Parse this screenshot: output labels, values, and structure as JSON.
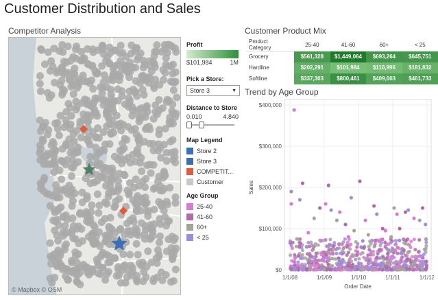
{
  "title": "Customer Distribution and Sales",
  "competitor": {
    "title": "Competitor Analysis",
    "attribution": "© Mapbox © OSM"
  },
  "profit": {
    "title": "Profit",
    "min_label": "$101,984",
    "max_label": "1M",
    "color_low": "#d4ebd0",
    "color_high": "#2f8f3a"
  },
  "store_picker": {
    "title": "Pick a Store:",
    "selected": "Store 3"
  },
  "distance": {
    "title": "Distance to Store",
    "min": "0.010",
    "max": "4.840",
    "value": 0.28
  },
  "map_legend": {
    "title": "Map Legend",
    "items": [
      {
        "label": "Store 2",
        "color": "#3b6fb6"
      },
      {
        "label": "Store 3",
        "color": "#3f6fa6"
      },
      {
        "label": "COMPETIT...",
        "color": "#e05a3c"
      },
      {
        "label": "Customer",
        "color": "#c8c8c8"
      }
    ]
  },
  "age_group": {
    "title": "Age Group",
    "items": [
      {
        "label": "25-40",
        "color": "#d77bd2"
      },
      {
        "label": "41-60",
        "color": "#b06aa6"
      },
      {
        "label": "60+",
        "color": "#a6a49a"
      },
      {
        "label": "< 25",
        "color": "#9b8ee0"
      }
    ]
  },
  "product_mix": {
    "title": "Customer Product Mix",
    "header": "Product Category",
    "columns": [
      "25-40",
      "41-60",
      "60+",
      "< 25"
    ],
    "rows": [
      {
        "category": "Grocery",
        "values": [
          "$561,328",
          "$1,449,064",
          "$693,264",
          "$645,751"
        ]
      },
      {
        "category": "Hardline",
        "values": [
          "$202,291",
          "$101,984",
          "$110,996",
          "$181,832"
        ]
      },
      {
        "category": "Softline",
        "values": [
          "$337,303",
          "$800,461",
          "$409,003",
          "$461,733"
        ]
      }
    ]
  },
  "chart_data": {
    "type": "scatter",
    "title": "Trend by Age Group",
    "xlabel": "Order Date",
    "ylabel": "Sales",
    "x_ticks": [
      "1/1/08",
      "1/1/09",
      "1/1/10",
      "1/1/11",
      "1/1/12"
    ],
    "y_ticks": [
      "$0",
      "$100,000",
      "$200,000",
      "$300,000",
      "$400,000"
    ],
    "ylim": [
      0,
      400000
    ],
    "series": [
      {
        "name": "25-40",
        "color": "#d77bd2",
        "points": [
          [
            "2008-02",
            388000
          ],
          [
            "2008-01",
            160000
          ],
          [
            "2009-01",
            160000
          ],
          [
            "2009-06",
            140000
          ],
          [
            "2010-03",
            120000
          ],
          [
            "2011-02",
            135000
          ],
          [
            "2011-08",
            125000
          ],
          [
            "2008-07",
            90000
          ],
          [
            "2010-10",
            95000
          ],
          [
            "2009-09",
            80000
          ]
        ]
      },
      {
        "name": "41-60",
        "color": "#b06aa6",
        "points": [
          [
            "2008-05",
            210000
          ],
          [
            "2009-02",
            205000
          ],
          [
            "2010-01",
            215000
          ],
          [
            "2008-11",
            150000
          ],
          [
            "2010-06",
            155000
          ],
          [
            "2011-05",
            140000
          ],
          [
            "2011-11",
            150000
          ],
          [
            "2009-08",
            110000
          ],
          [
            "2010-09",
            100000
          ],
          [
            "2011-03",
            100000
          ]
        ]
      },
      {
        "name": "60+",
        "color": "#a6a49a",
        "points": [
          [
            "2008-09",
            125000
          ],
          [
            "2009-05",
            120000
          ],
          [
            "2010-04",
            85000
          ],
          [
            "2011-01",
            150000
          ],
          [
            "2011-10",
            120000
          ],
          [
            "2008-03",
            75000
          ],
          [
            "2009-11",
            95000
          ],
          [
            "2010-12",
            80000
          ]
        ]
      },
      {
        "name": "< 25",
        "color": "#9b8ee0",
        "points": [
          [
            "2008-01",
            190000
          ],
          [
            "2008-04",
            170000
          ],
          [
            "2009-03",
            145000
          ],
          [
            "2009-10",
            175000
          ],
          [
            "2010-07",
            135000
          ],
          [
            "2011-06",
            145000
          ],
          [
            "2011-12",
            110000
          ],
          [
            "2010-02",
            70000
          ]
        ]
      }
    ]
  }
}
